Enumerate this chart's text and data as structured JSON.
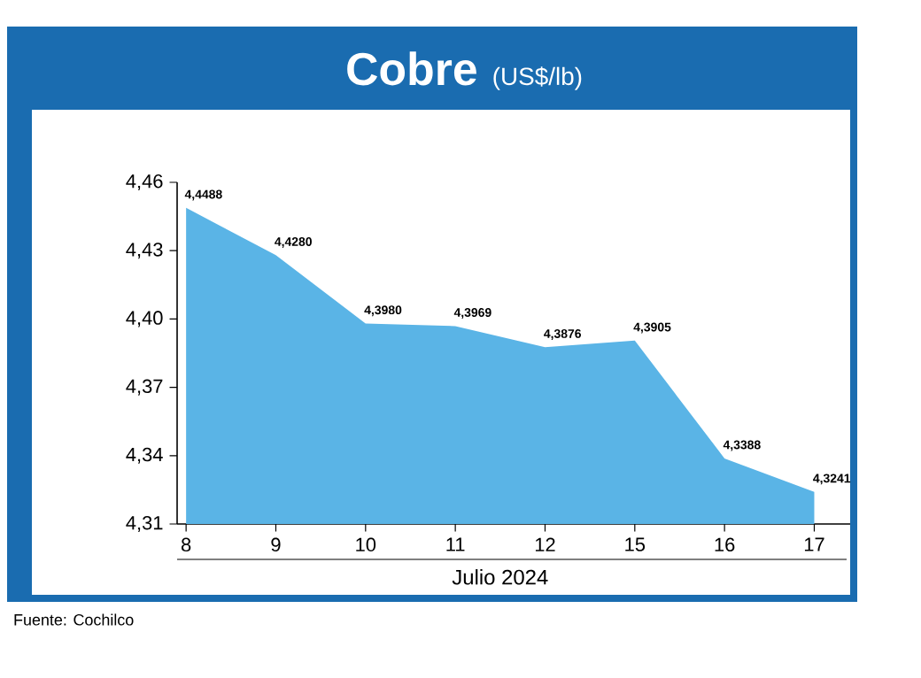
{
  "chart_data": {
    "type": "area",
    "title": "Cobre",
    "subtitle": "(US$/lb)",
    "xlabel": "Julio 2024",
    "categories": [
      "8",
      "9",
      "10",
      "11",
      "12",
      "15",
      "16",
      "17"
    ],
    "values": [
      4.4488,
      4.428,
      4.398,
      4.3969,
      4.3876,
      4.3905,
      4.3388,
      4.3241
    ],
    "value_labels": [
      "4,4488",
      "4,4280",
      "4,3980",
      "4,3969",
      "4,3876",
      "4,3905",
      "4,3388",
      "4,3241"
    ],
    "color": "#5ab4e6",
    "ylim": [
      4.31,
      4.46
    ],
    "yticks": [
      {
        "value": 4.31,
        "label": "4,31"
      },
      {
        "value": 4.34,
        "label": "4,34"
      },
      {
        "value": 4.37,
        "label": "4,37"
      },
      {
        "value": 4.4,
        "label": "4,40"
      },
      {
        "value": 4.43,
        "label": "4,43"
      },
      {
        "value": 4.46,
        "label": "4,46"
      }
    ],
    "annotations": [
      "Fuente: Cochilco"
    ]
  }
}
